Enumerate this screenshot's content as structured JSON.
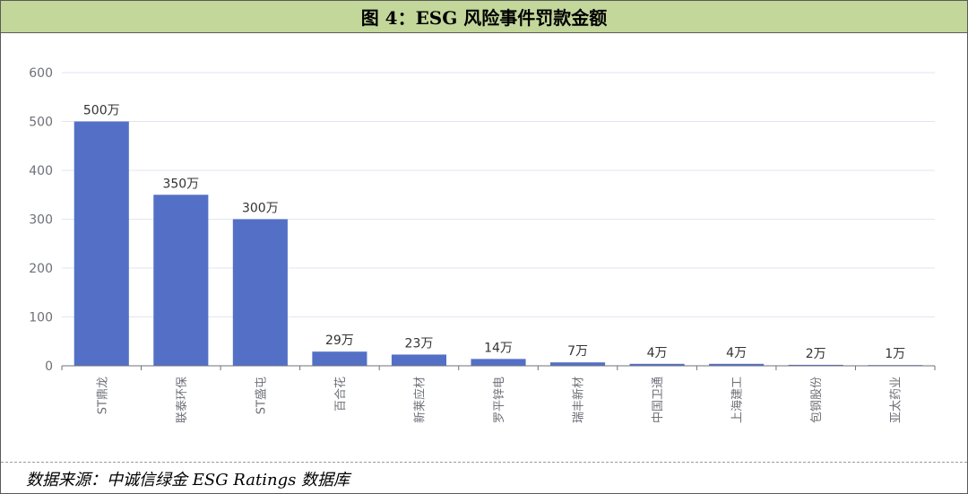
{
  "header": {
    "title": "图 4：ESG 风险事件罚款金额"
  },
  "footer": {
    "source": "数据来源：中诚信绿金 ESG Ratings 数据库"
  },
  "colors": {
    "bar": "#5470c6",
    "header_bg": "#c4d79b",
    "grid": "#e0e6f1",
    "axis": "#6e7079"
  },
  "chart_data": {
    "type": "bar",
    "title": "ESG 风险事件罚款金额",
    "categories": [
      "ST鼎龙",
      "联泰环保",
      "ST盛屯",
      "百合花",
      "新莱应材",
      "罗平锌电",
      "瑞丰新材",
      "中国卫通",
      "上海建工",
      "包钢股份",
      "亚太药业"
    ],
    "values": [
      500,
      350,
      300,
      29,
      23,
      14,
      7,
      4,
      4,
      2,
      1
    ],
    "data_labels": [
      "500万",
      "350万",
      "300万",
      "29万",
      "23万",
      "14万",
      "7万",
      "4万",
      "4万",
      "2万",
      "1万"
    ],
    "y_ticks": [
      0,
      100,
      200,
      300,
      400,
      500,
      600
    ],
    "ylim": [
      0,
      600
    ],
    "xlabel": "",
    "ylabel": "",
    "grid": true
  }
}
